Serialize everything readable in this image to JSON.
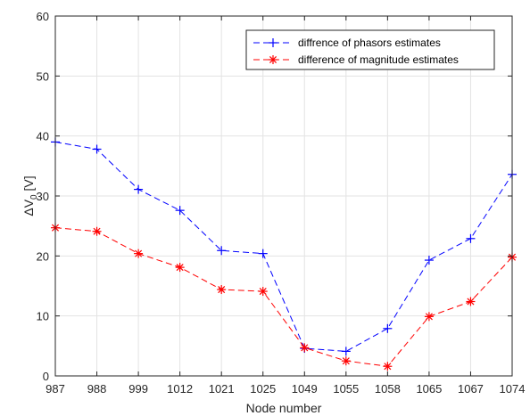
{
  "chart_data": {
    "type": "line",
    "categories": [
      "987",
      "988",
      "999",
      "1012",
      "1021",
      "1025",
      "1049",
      "1055",
      "1058",
      "1065",
      "1067",
      "1074"
    ],
    "xlabel": "Node number",
    "ylabel": "ΔV",
    "ylabel_sub": "0",
    "ylabel_unit": " [V]",
    "ylim": [
      0,
      60
    ],
    "yticks": [
      0,
      10,
      20,
      30,
      40,
      50,
      60
    ],
    "grid": true,
    "legend_position": "top-right",
    "series": [
      {
        "name": "diffrence of phasors estimates",
        "color": "#0000ff",
        "marker": "plus",
        "line_style": "dashed",
        "values": [
          39.0,
          37.8,
          31.1,
          27.6,
          20.9,
          20.4,
          4.6,
          4.1,
          7.9,
          19.3,
          22.9,
          33.6
        ]
      },
      {
        "name": "difference of magnitude estimates",
        "color": "#ff0000",
        "marker": "asterisk",
        "line_style": "dashed",
        "values": [
          24.7,
          24.1,
          20.4,
          18.1,
          14.4,
          14.1,
          4.7,
          2.5,
          1.6,
          9.9,
          12.4,
          19.8
        ]
      }
    ]
  }
}
